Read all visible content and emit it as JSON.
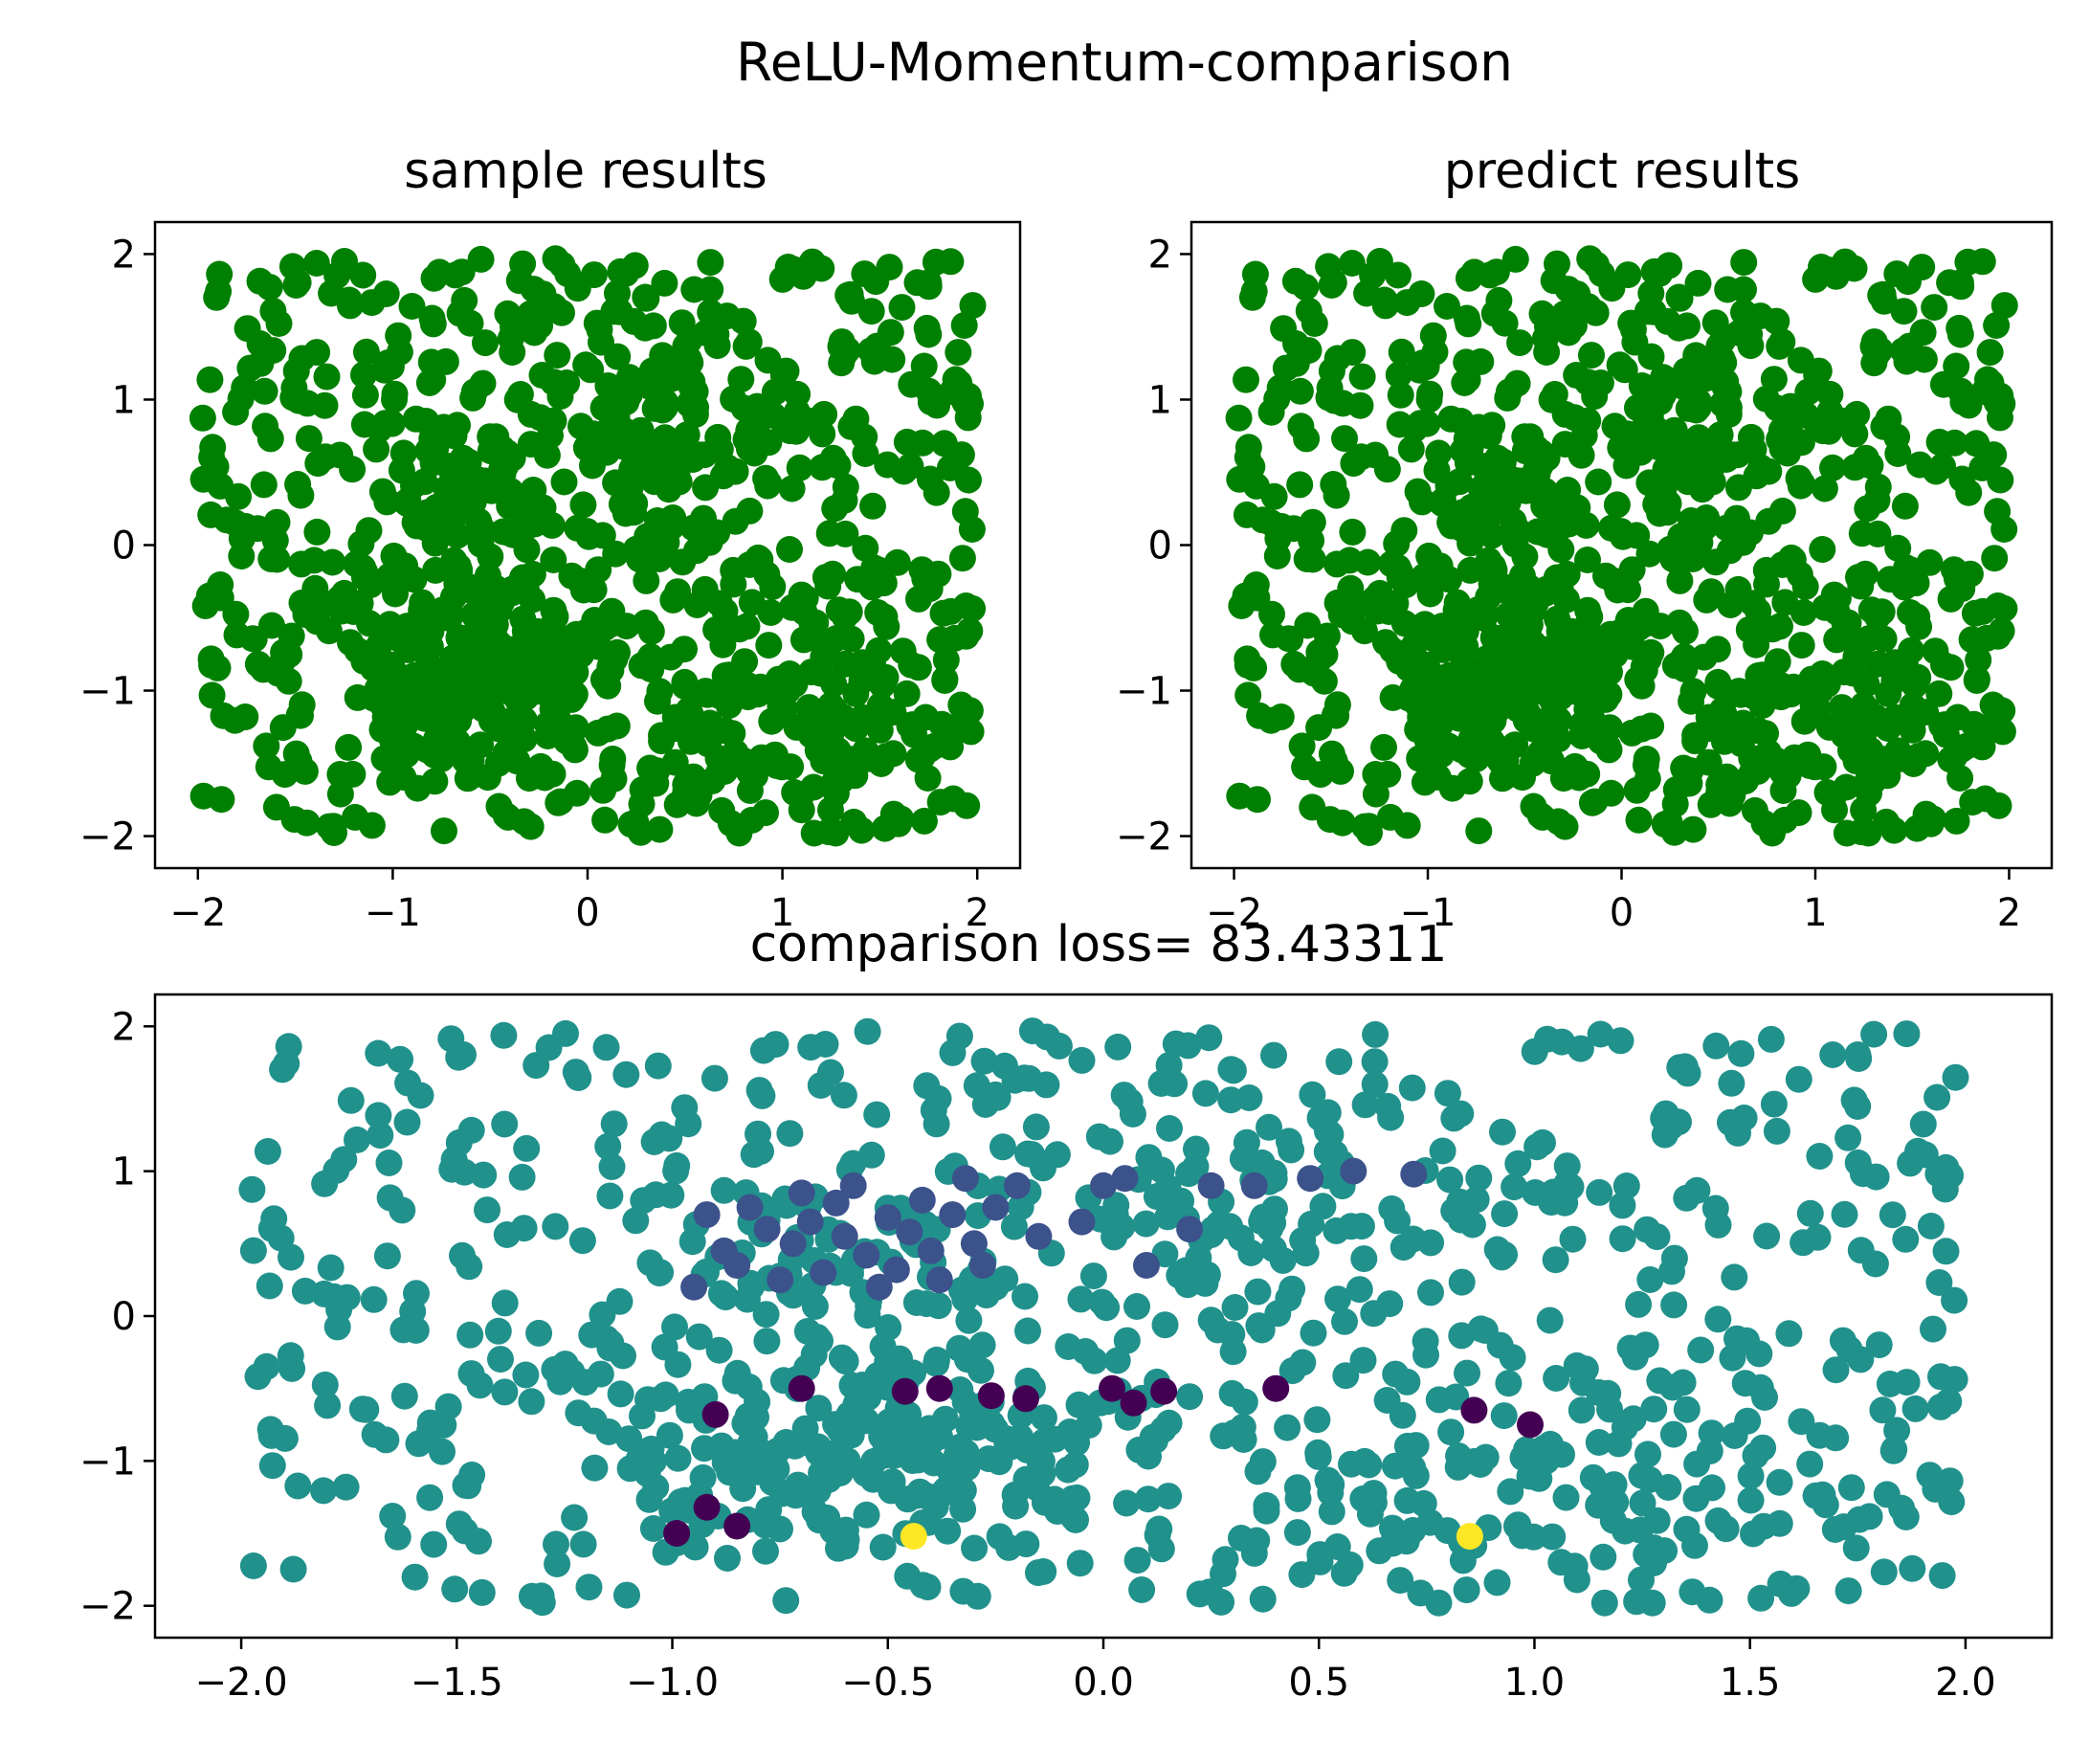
{
  "figure": {
    "suptitle": "ReLU-Momentum-comparison"
  },
  "colors": {
    "sample_marker": "#008000",
    "viridis_low": "#440154",
    "viridis_midlow": "#3b528b",
    "viridis_mid": "#21918c",
    "viridis_high": "#fde725"
  },
  "chart_data": [
    {
      "type": "scatter",
      "title": "sample results",
      "xlabel": "",
      "ylabel": "",
      "xlim": [
        -2.22,
        2.22
      ],
      "ylim": [
        -2.22,
        2.22
      ],
      "xticks": [
        -2,
        -1,
        0,
        1,
        2
      ],
      "yticks": [
        -2,
        -1,
        0,
        1,
        2
      ],
      "xtick_labels": [
        "−2",
        "−1",
        "0",
        "1",
        "2"
      ],
      "ytick_labels": [
        "−2",
        "−1",
        "0",
        "1",
        "2"
      ],
      "grid": false,
      "marker_color": "#008000",
      "points": "approximately 1000 points roughly uniformly spread over x in [-2, 2], y in [-2, 2], denser around (-0.5, -0.8), (-0.6, 0.4), (0.5, 1.0) and (1.0, -1.3)"
    },
    {
      "type": "scatter",
      "title": "predict results",
      "xlabel": "",
      "ylabel": "",
      "xlim": [
        -2.22,
        2.22
      ],
      "ylim": [
        -2.22,
        2.22
      ],
      "xticks": [
        -2,
        -1,
        0,
        1,
        2
      ],
      "yticks": [
        -2,
        -1,
        0,
        1,
        2
      ],
      "xtick_labels": [
        "−2",
        "−1",
        "0",
        "1",
        "2"
      ],
      "ytick_labels": [
        "−2",
        "−1",
        "0",
        "1",
        "2"
      ],
      "grid": false,
      "marker_color": "#008000",
      "points": "same point set as the sample panel"
    },
    {
      "type": "scatter",
      "title": "comparison loss= 83.43311",
      "xlabel": "",
      "ylabel": "",
      "xlim": [
        -2.2,
        2.2
      ],
      "ylim": [
        -2.22,
        2.22
      ],
      "xticks": [
        -2.0,
        -1.5,
        -1.0,
        -0.5,
        0.0,
        0.5,
        1.0,
        1.5,
        2.0
      ],
      "yticks": [
        -2,
        -1,
        0,
        1,
        2
      ],
      "xtick_labels": [
        "−2.0",
        "−1.5",
        "−1.0",
        "−0.5",
        "0.0",
        "0.5",
        "1.0",
        "1.5",
        "2.0"
      ],
      "ytick_labels": [
        "−2",
        "−1",
        "0",
        "1",
        "2"
      ],
      "grid": false,
      "colormap": "viridis",
      "points": "same point set as the sample panel, colored by prediction difference; nearly all at the mid value",
      "highlighted_points": {
        "midlow": [
          [
            -0.95,
            0.2
          ],
          [
            -0.92,
            0.7
          ],
          [
            -0.88,
            0.45
          ],
          [
            -0.85,
            0.35
          ],
          [
            -0.82,
            0.75
          ],
          [
            -0.78,
            0.6
          ],
          [
            -0.75,
            0.25
          ],
          [
            -0.72,
            0.5
          ],
          [
            -0.7,
            0.85
          ],
          [
            -0.68,
            0.65
          ],
          [
            -0.65,
            0.3
          ],
          [
            -0.62,
            0.78
          ],
          [
            -0.6,
            0.55
          ],
          [
            -0.58,
            0.9
          ],
          [
            -0.55,
            0.42
          ],
          [
            -0.52,
            0.2
          ],
          [
            -0.5,
            0.68
          ],
          [
            -0.48,
            0.32
          ],
          [
            -0.45,
            0.58
          ],
          [
            -0.42,
            0.8
          ],
          [
            -0.4,
            0.45
          ],
          [
            -0.38,
            0.25
          ],
          [
            -0.35,
            0.7
          ],
          [
            -0.32,
            0.95
          ],
          [
            -0.3,
            0.5
          ],
          [
            -0.28,
            0.35
          ],
          [
            -0.25,
            0.75
          ],
          [
            -0.2,
            0.9
          ],
          [
            -0.15,
            0.55
          ],
          [
            -0.05,
            0.65
          ],
          [
            0.0,
            0.9
          ],
          [
            0.05,
            0.95
          ],
          [
            0.1,
            0.35
          ],
          [
            0.2,
            0.6
          ],
          [
            0.25,
            0.9
          ],
          [
            0.35,
            0.9
          ],
          [
            0.48,
            0.95
          ],
          [
            0.58,
            1.0
          ],
          [
            0.72,
            0.98
          ]
        ],
        "low": [
          [
            -0.99,
            -1.5
          ],
          [
            -0.92,
            -1.32
          ],
          [
            -0.9,
            -0.68
          ],
          [
            -0.85,
            -1.45
          ],
          [
            -0.7,
            -0.5
          ],
          [
            -0.46,
            -0.52
          ],
          [
            -0.38,
            -0.5
          ],
          [
            -0.26,
            -0.55
          ],
          [
            -0.18,
            -0.57
          ],
          [
            0.02,
            -0.5
          ],
          [
            0.07,
            -0.6
          ],
          [
            0.14,
            -0.52
          ],
          [
            0.4,
            -0.5
          ],
          [
            0.86,
            -0.65
          ],
          [
            0.99,
            -0.75
          ]
        ],
        "high": [
          [
            -0.44,
            -1.52
          ],
          [
            0.85,
            -1.52
          ]
        ]
      }
    }
  ]
}
